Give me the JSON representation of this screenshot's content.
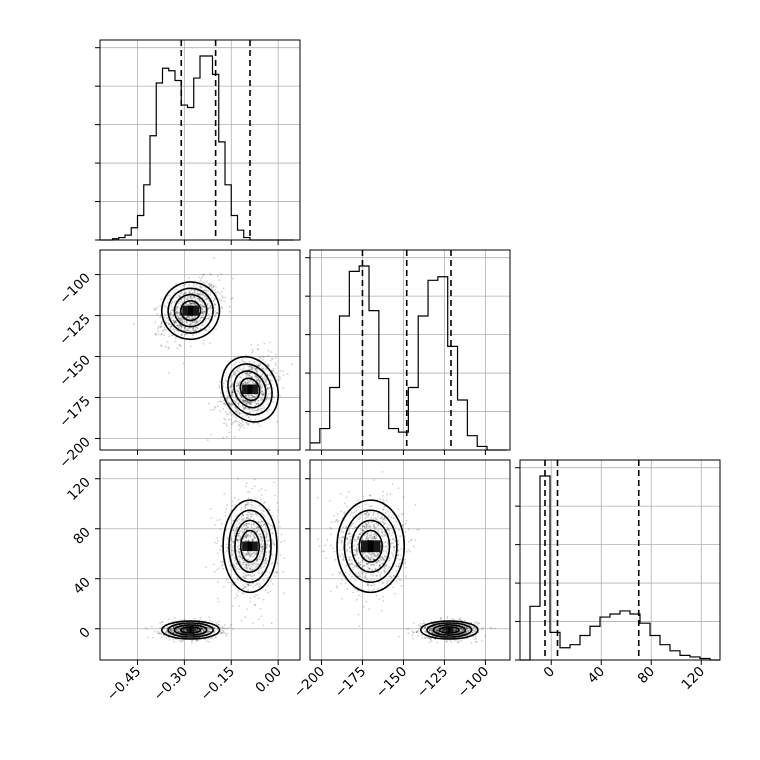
{
  "chart_data": {
    "type": "corner",
    "grid": true,
    "parameters": [
      {
        "key": "p1",
        "range": [
          -0.57,
          0.07
        ],
        "ticks": [
          -0.45,
          -0.3,
          -0.15,
          0.0
        ],
        "tick_labels": [
          "−0.45",
          "−0.30",
          "−0.15",
          "0.00"
        ],
        "quantiles": [
          -0.31,
          -0.2,
          -0.09
        ],
        "histogram": {
          "bins": [
            -0.57,
            -0.55,
            -0.53,
            -0.51,
            -0.49,
            -0.47,
            -0.45,
            -0.43,
            -0.41,
            -0.39,
            -0.37,
            -0.35,
            -0.33,
            -0.31,
            -0.29,
            -0.27,
            -0.25,
            -0.23,
            -0.21,
            -0.19,
            -0.17,
            -0.15,
            -0.13,
            -0.11,
            -0.09,
            -0.07,
            -0.05,
            -0.03,
            -0.01,
            0.01,
            0.03,
            0.05
          ],
          "counts": [
            0,
            0,
            1,
            2,
            4,
            10,
            20,
            45,
            85,
            128,
            140,
            138,
            130,
            110,
            108,
            132,
            150,
            150,
            135,
            80,
            45,
            20,
            8,
            2,
            0,
            0,
            0,
            0,
            0,
            0,
            0
          ]
        }
      },
      {
        "key": "p2",
        "range": [
          -207,
          -85
        ],
        "ticks": [
          -100,
          -125,
          -150,
          -175,
          -200
        ],
        "tick_labels": [
          "−100",
          "−125",
          "−150",
          "−175",
          "−200"
        ],
        "quantiles": [
          -175,
          -148,
          -121
        ],
        "histogram": {
          "bins": [
            -207,
            -201,
            -195,
            -189,
            -183,
            -177,
            -171,
            -165,
            -159,
            -153,
            -147,
            -141,
            -135,
            -129,
            -123,
            -117,
            -111,
            -105,
            -99,
            -93,
            -87
          ],
          "counts": [
            4,
            12,
            35,
            75,
            100,
            103,
            78,
            40,
            12,
            10,
            35,
            75,
            95,
            97,
            58,
            28,
            8,
            2,
            0,
            0
          ]
        }
      },
      {
        "key": "p3",
        "range": [
          -25,
          135
        ],
        "ticks": [
          0,
          40,
          80,
          120
        ],
        "tick_labels": [
          "0",
          "40",
          "80",
          "120"
        ],
        "quantiles": [
          -5,
          5,
          70
        ],
        "histogram": {
          "bins": [
            -25,
            -17,
            -9,
            -1,
            7,
            15,
            23,
            31,
            39,
            47,
            55,
            63,
            71,
            79,
            87,
            95,
            103,
            111,
            119,
            127,
            135
          ],
          "counts": [
            0,
            35,
            120,
            18,
            8,
            10,
            16,
            22,
            28,
            30,
            32,
            30,
            24,
            16,
            10,
            6,
            3,
            2,
            1,
            0
          ]
        }
      }
    ],
    "clusters": [
      {
        "p1": -0.28,
        "p2": -122,
        "p3": -1,
        "weight": 0.5
      },
      {
        "p1": -0.09,
        "p2": -170,
        "p3": 66,
        "weight": 0.5
      }
    ]
  }
}
